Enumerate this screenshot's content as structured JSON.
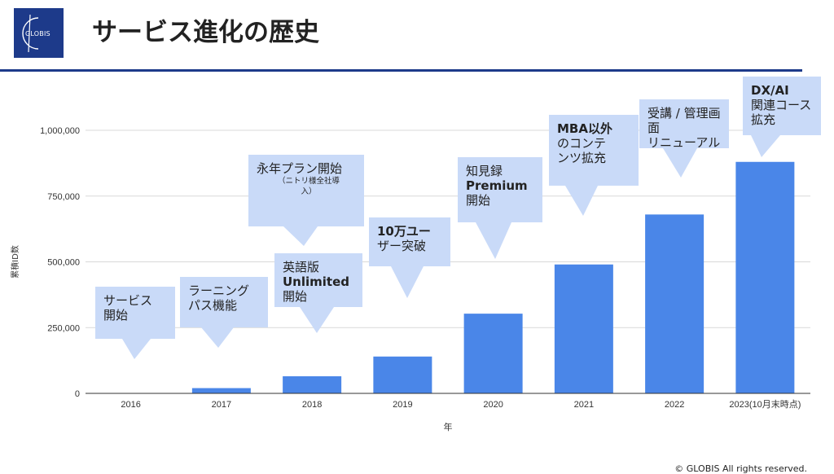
{
  "header": {
    "logo_text": "GLOBIS",
    "title": "サービス進化の歴史"
  },
  "footer": {
    "copyright": "© GLOBIS All rights reserved."
  },
  "colors": {
    "bar": "#4a86e8",
    "callout": "#c9daf8",
    "brand": "#1d3a8a",
    "grid": "#d9d9d9"
  },
  "chart_data": {
    "type": "bar",
    "title": "",
    "xlabel": "年",
    "ylabel": "累積ID数",
    "categories": [
      "2016",
      "2017",
      "2018",
      "2019",
      "2020",
      "2021",
      "2022",
      "2023(10月末時点)"
    ],
    "values": [
      0,
      20000,
      65000,
      140000,
      303000,
      490000,
      680000,
      880000
    ],
    "ylim": [
      0,
      1000000
    ],
    "yticks": [
      "0",
      "250,000",
      "500,000",
      "750,000",
      "1,000,000"
    ],
    "grid": true,
    "annotations": [
      {
        "lines": [
          "サービス",
          "開始"
        ]
      },
      {
        "lines": [
          "ラーニング",
          "パス機能"
        ]
      },
      {
        "lines": [
          "英語版",
          "Unlimited",
          "開始"
        ]
      },
      {
        "lines": [
          "永年プラン開始"
        ],
        "sub": [
          "（ニトリ様全社導",
          "入）"
        ]
      },
      {
        "lines": [
          "10万ユー",
          "ザー突破"
        ]
      },
      {
        "lines": [
          "知見録",
          "Premium",
          "開始"
        ]
      },
      {
        "lines": [
          "MBA以外",
          "のコンテ",
          "ンツ拡充"
        ]
      },
      {
        "lines": [
          "受講 / 管理画面",
          "リニューアル"
        ]
      },
      {
        "lines": [
          "DX/AI",
          "関連コース",
          "拡充"
        ]
      }
    ]
  }
}
